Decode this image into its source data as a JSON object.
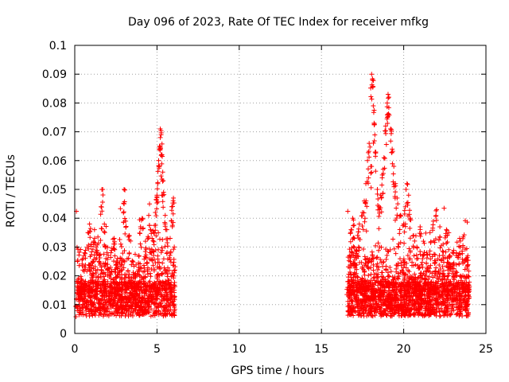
{
  "chart_data": {
    "type": "scatter",
    "title": "Day 096 of 2023, Rate Of TEC Index for receiver mfkg",
    "xlabel": "GPS time / hours",
    "ylabel": "ROTI / TECUs",
    "xlim": [
      0,
      25
    ],
    "ylim": [
      0,
      0.1
    ],
    "xticks": [
      0,
      5,
      10,
      15,
      20,
      25
    ],
    "xtick_labels": [
      "0",
      "5",
      "10",
      "15",
      "20",
      "25"
    ],
    "yticks": [
      0,
      0.01,
      0.02,
      0.03,
      0.04,
      0.05,
      0.06,
      0.07,
      0.08,
      0.09,
      0.1
    ],
    "ytick_labels": [
      "0",
      "0.01",
      "0.02",
      "0.03",
      "0.04",
      "0.05",
      "0.06",
      "0.07",
      "0.08",
      "0.09",
      "0.1"
    ],
    "grid": true,
    "marker": "+",
    "color": "#ff0000",
    "series": [
      {
        "name": "ROTI",
        "points": [
          [
            0.1,
            0.012
          ],
          [
            0.3,
            0.015
          ],
          [
            0.5,
            0.022
          ],
          [
            0.6,
            0.028
          ],
          [
            0.8,
            0.035
          ],
          [
            0.9,
            0.038
          ],
          [
            1.0,
            0.031
          ],
          [
            1.1,
            0.025
          ],
          [
            1.2,
            0.036
          ],
          [
            1.3,
            0.03
          ],
          [
            1.5,
            0.027
          ],
          [
            1.6,
            0.044
          ],
          [
            1.7,
            0.05
          ],
          [
            1.8,
            0.038
          ],
          [
            1.9,
            0.03
          ],
          [
            2.0,
            0.024
          ],
          [
            2.2,
            0.028
          ],
          [
            2.4,
            0.033
          ],
          [
            2.6,
            0.026
          ],
          [
            2.8,
            0.031
          ],
          [
            3.0,
            0.045
          ],
          [
            3.0,
            0.05
          ],
          [
            3.1,
            0.039
          ],
          [
            3.3,
            0.034
          ],
          [
            3.5,
            0.025
          ],
          [
            3.7,
            0.02
          ],
          [
            3.9,
            0.027
          ],
          [
            4.0,
            0.037
          ],
          [
            4.1,
            0.04
          ],
          [
            4.3,
            0.032
          ],
          [
            4.5,
            0.041
          ],
          [
            4.6,
            0.036
          ],
          [
            4.7,
            0.033
          ],
          [
            4.8,
            0.035
          ],
          [
            4.9,
            0.042
          ],
          [
            5.0,
            0.048
          ],
          [
            5.05,
            0.052
          ],
          [
            5.1,
            0.06
          ],
          [
            5.15,
            0.065
          ],
          [
            5.2,
            0.071
          ],
          [
            5.25,
            0.069
          ],
          [
            5.3,
            0.062
          ],
          [
            5.35,
            0.056
          ],
          [
            5.4,
            0.049
          ],
          [
            5.5,
            0.041
          ],
          [
            5.6,
            0.036
          ],
          [
            5.8,
            0.033
          ],
          [
            5.9,
            0.044
          ],
          [
            6.0,
            0.047
          ],
          [
            6.05,
            0.03
          ],
          [
            16.6,
            0.018
          ],
          [
            16.7,
            0.027
          ],
          [
            16.8,
            0.036
          ],
          [
            16.9,
            0.04
          ],
          [
            17.0,
            0.033
          ],
          [
            17.1,
            0.029
          ],
          [
            17.2,
            0.034
          ],
          [
            17.3,
            0.038
          ],
          [
            17.5,
            0.042
          ],
          [
            17.6,
            0.046
          ],
          [
            17.7,
            0.052
          ],
          [
            17.8,
            0.06
          ],
          [
            17.9,
            0.066
          ],
          [
            18.0,
            0.058
          ],
          [
            18.05,
            0.09
          ],
          [
            18.1,
            0.088
          ],
          [
            18.15,
            0.079
          ],
          [
            18.2,
            0.073
          ],
          [
            18.3,
            0.063
          ],
          [
            18.4,
            0.05
          ],
          [
            18.5,
            0.044
          ],
          [
            18.6,
            0.048
          ],
          [
            18.7,
            0.055
          ],
          [
            18.8,
            0.061
          ],
          [
            18.9,
            0.072
          ],
          [
            19.0,
            0.08
          ],
          [
            19.05,
            0.083
          ],
          [
            19.1,
            0.082
          ],
          [
            19.2,
            0.071
          ],
          [
            19.3,
            0.064
          ],
          [
            19.4,
            0.058
          ],
          [
            19.5,
            0.052
          ],
          [
            19.6,
            0.047
          ],
          [
            19.8,
            0.041
          ],
          [
            20.0,
            0.038
          ],
          [
            20.1,
            0.044
          ],
          [
            20.2,
            0.052
          ],
          [
            20.3,
            0.048
          ],
          [
            20.4,
            0.04
          ],
          [
            20.6,
            0.034
          ],
          [
            20.8,
            0.03
          ],
          [
            21.0,
            0.037
          ],
          [
            21.2,
            0.032
          ],
          [
            21.4,
            0.028
          ],
          [
            21.6,
            0.035
          ],
          [
            21.8,
            0.039
          ],
          [
            22.0,
            0.043
          ],
          [
            22.2,
            0.037
          ],
          [
            22.4,
            0.031
          ],
          [
            22.6,
            0.036
          ],
          [
            22.8,
            0.027
          ],
          [
            23.0,
            0.024
          ],
          [
            23.2,
            0.028
          ],
          [
            23.4,
            0.033
          ],
          [
            23.6,
            0.03
          ],
          [
            23.8,
            0.026
          ],
          [
            23.9,
            0.027
          ]
        ]
      }
    ]
  }
}
